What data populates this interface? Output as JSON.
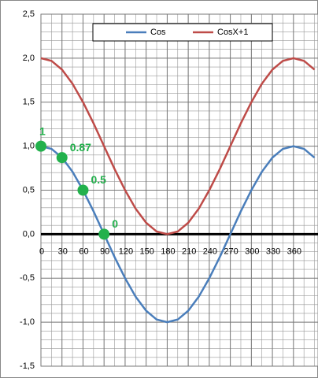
{
  "chart_data": {
    "type": "line",
    "x": [
      0,
      15,
      30,
      45,
      60,
      75,
      90,
      105,
      120,
      135,
      150,
      165,
      180,
      195,
      210,
      225,
      240,
      255,
      270,
      285,
      300,
      315,
      330,
      345,
      360,
      375,
      390
    ],
    "series": [
      {
        "name": "Cos",
        "color": "#4a7ebb",
        "values": [
          1,
          0.97,
          0.87,
          0.71,
          0.5,
          0.26,
          0,
          -0.26,
          -0.5,
          -0.71,
          -0.87,
          -0.97,
          -1,
          -0.97,
          -0.87,
          -0.71,
          -0.5,
          -0.26,
          0,
          0.26,
          0.5,
          0.71,
          0.87,
          0.97,
          1,
          0.97,
          0.87
        ]
      },
      {
        "name": "CosX+1",
        "color": "#be4b48",
        "values": [
          2,
          1.97,
          1.87,
          1.71,
          1.5,
          1.26,
          1,
          0.74,
          0.5,
          0.29,
          0.13,
          0.03,
          0,
          0.03,
          0.13,
          0.29,
          0.5,
          0.74,
          1,
          1.26,
          1.5,
          1.71,
          1.87,
          1.97,
          2,
          1.97,
          1.87
        ]
      }
    ],
    "xlim": [
      0,
      395
    ],
    "xticks": [
      0,
      30,
      60,
      90,
      120,
      150,
      180,
      210,
      240,
      270,
      300,
      330,
      360
    ],
    "ylim": [
      -1.5,
      2.5
    ],
    "yticks": [
      {
        "value": 2.5,
        "label": "2,5"
      },
      {
        "value": 2,
        "label": "2,0"
      },
      {
        "value": 1.5,
        "label": "1,5"
      },
      {
        "value": 1,
        "label": "1,0"
      },
      {
        "value": 0.5,
        "label": "0,5"
      },
      {
        "value": 0,
        "label": "0,0"
      },
      {
        "value": -0.5,
        "label": "-0,5"
      },
      {
        "value": -1,
        "label": "-1,0"
      },
      {
        "value": -1.5,
        "label": "-1,5"
      }
    ],
    "grid": true,
    "legend": "top",
    "annotations": [
      {
        "x": 0,
        "y": 1,
        "label": "1"
      },
      {
        "x": 30,
        "y": 0.87,
        "label": "0.87"
      },
      {
        "x": 60,
        "y": 0.5,
        "label": "0.5"
      },
      {
        "x": 90,
        "y": 0,
        "label": "0"
      }
    ],
    "annotation_color": "#22b14c"
  }
}
